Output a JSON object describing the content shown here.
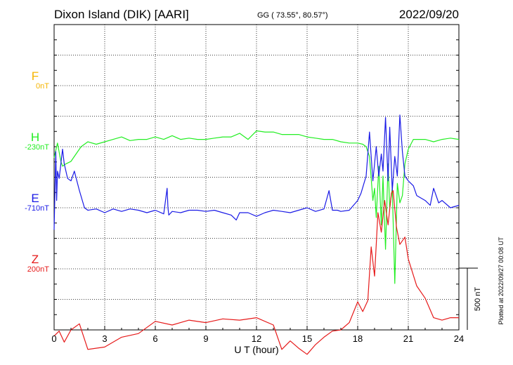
{
  "header": {
    "station": "Dixon Island (DIK)  [AARI]",
    "coords": "GG ( 73.55°,  80.57°)",
    "date": "2022/09/20"
  },
  "footer_note": "Plotted at 2022/09/27 00:08 UT",
  "scale_label": "500 nT",
  "chart_data": {
    "type": "line",
    "title": "",
    "xlabel": "U T (hour)",
    "ylabel": "",
    "xlim": [
      0,
      24
    ],
    "xticks": [
      "0",
      "3",
      "6",
      "9",
      "12",
      "15",
      "18",
      "21",
      "24"
    ],
    "nT_per_gridline": 125,
    "grid": true,
    "legend": "left-side labels",
    "series": [
      {
        "name": "F",
        "baseline": "0nT",
        "color": "#f5b400",
        "x": [],
        "y": []
      },
      {
        "name": "H",
        "baseline": "-230nT",
        "color": "#22ee22",
        "x": [
          0,
          0.2,
          0.4,
          0.5,
          0.7,
          1.0,
          1.3,
          1.6,
          2.0,
          2.5,
          3.0,
          3.5,
          4.0,
          4.5,
          5.0,
          5.5,
          6.0,
          6.5,
          7.0,
          7.5,
          8.0,
          8.5,
          9.0,
          9.5,
          10.0,
          10.5,
          11.0,
          11.5,
          12.0,
          12.5,
          13.0,
          13.5,
          14.0,
          14.5,
          15.0,
          15.5,
          16.0,
          16.5,
          17.0,
          17.5,
          18.0,
          18.3,
          18.5,
          18.7,
          18.9,
          19.0,
          19.1,
          19.25,
          19.4,
          19.5,
          19.65,
          19.8,
          19.9,
          20.05,
          20.2,
          20.35,
          20.5,
          20.65,
          20.8,
          21.0,
          21.3,
          21.5,
          22.0,
          22.5,
          23.0,
          23.5,
          24.0
        ],
        "y": [
          -275,
          -215,
          -290,
          -310,
          -300,
          -290,
          -260,
          -230,
          -210,
          -220,
          -210,
          -200,
          -190,
          -205,
          -200,
          -200,
          -190,
          -200,
          -185,
          -200,
          -195,
          -200,
          -200,
          -195,
          -190,
          -190,
          -175,
          -200,
          -165,
          -170,
          -170,
          -180,
          -180,
          -180,
          -190,
          -195,
          -200,
          -200,
          -210,
          -215,
          -215,
          -220,
          -230,
          -270,
          -450,
          -400,
          -520,
          -310,
          -550,
          -350,
          -650,
          -300,
          -480,
          -400,
          -790,
          -380,
          -460,
          -430,
          -300,
          -240,
          -200,
          -200,
          -200,
          -210,
          -200,
          -195,
          -200
        ]
      },
      {
        "name": "E",
        "baseline": "-710nT",
        "color": "#1a1ae6",
        "x": [
          0,
          0.1,
          0.15,
          0.2,
          0.3,
          0.5,
          0.6,
          0.8,
          1.0,
          1.2,
          1.5,
          1.8,
          2.0,
          2.5,
          3.0,
          3.5,
          4.0,
          4.5,
          5.0,
          5.5,
          6.0,
          6.5,
          6.7,
          6.75,
          6.8,
          7.0,
          7.5,
          8.0,
          8.5,
          9.0,
          9.5,
          10.0,
          10.5,
          10.8,
          11.0,
          11.5,
          12.0,
          12.5,
          13.0,
          13.5,
          14.0,
          14.5,
          15.0,
          15.5,
          16.0,
          16.3,
          16.5,
          16.8,
          17.0,
          17.5,
          18.0,
          18.2,
          18.5,
          18.7,
          18.9,
          19.0,
          19.1,
          19.25,
          19.4,
          19.5,
          19.65,
          19.8,
          19.9,
          20.05,
          20.2,
          20.35,
          20.5,
          20.65,
          20.8,
          21.0,
          21.3,
          21.5,
          22.0,
          22.3,
          22.5,
          22.8,
          23.0,
          23.5,
          24.0
        ],
        "y": [
          -800,
          -480,
          -680,
          -560,
          -590,
          -470,
          -530,
          -590,
          -600,
          -560,
          -640,
          -710,
          -720,
          -715,
          -730,
          -715,
          -725,
          -715,
          -720,
          -730,
          -720,
          -735,
          -630,
          -710,
          -740,
          -725,
          -730,
          -720,
          -720,
          -725,
          -720,
          -730,
          -740,
          -760,
          -730,
          -730,
          -745,
          -730,
          -720,
          -725,
          -730,
          -720,
          -710,
          -725,
          -715,
          -640,
          -720,
          -720,
          -725,
          -720,
          -680,
          -650,
          -580,
          -400,
          -600,
          -530,
          -460,
          -580,
          -490,
          -560,
          -340,
          -600,
          -380,
          -640,
          -500,
          -580,
          -330,
          -480,
          -580,
          -600,
          -620,
          -660,
          -680,
          -700,
          -630,
          -690,
          -680,
          -710,
          -700
        ]
      },
      {
        "name": "Z",
        "baseline": "200nT",
        "color": "#e61a1a",
        "x": [
          0,
          0.3,
          0.6,
          1.0,
          1.5,
          2.0,
          3.0,
          4.0,
          5.0,
          6.0,
          7.0,
          8.0,
          9.0,
          10.0,
          11.0,
          12.0,
          13.0,
          13.5,
          14.0,
          14.5,
          15.0,
          15.5,
          16.0,
          16.5,
          17.0,
          17.5,
          18.0,
          18.3,
          18.6,
          18.8,
          19.0,
          19.2,
          19.4,
          19.6,
          19.8,
          20.0,
          20.1,
          20.3,
          20.5,
          20.8,
          21.0,
          21.5,
          22.0,
          22.5,
          23.0,
          23.5,
          24.0
        ],
        "y": [
          -75,
          -55,
          -100,
          -50,
          -25,
          -130,
          -120,
          -80,
          -65,
          -15,
          -30,
          -10,
          -20,
          -5,
          -10,
          0,
          -30,
          -130,
          -95,
          -125,
          -150,
          -110,
          -80,
          -55,
          -50,
          -20,
          65,
          25,
          70,
          290,
          170,
          430,
          350,
          480,
          380,
          510,
          520,
          370,
          300,
          330,
          240,
          130,
          80,
          0,
          -10,
          0,
          0
        ]
      }
    ]
  }
}
